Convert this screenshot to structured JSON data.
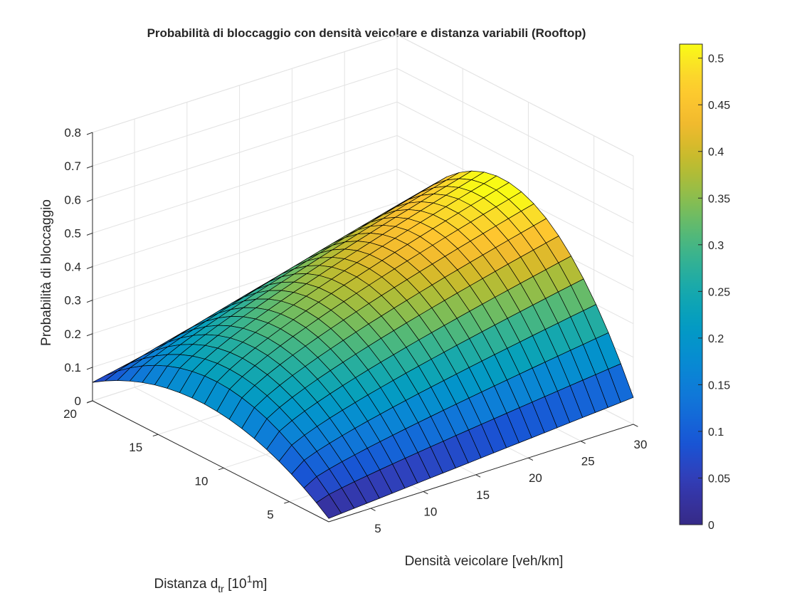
{
  "chart_data": {
    "type": "surface",
    "title": "Probabilità di bloccaggio con densità veicolare e distanza variabili (Rooftop)",
    "xlabel": "Densità veicolare [veh/km]",
    "ylabel": {
      "main": "Distanza d",
      "sub": "tr",
      "mid": " [10",
      "sup": "1",
      "end": "m]"
    },
    "zlabel": "Probabilità di bloccaggio",
    "xlim": [
      1,
      30
    ],
    "ylim": [
      2,
      20
    ],
    "zlim": [
      0,
      0.8
    ],
    "x_ticks": [
      "5",
      "10",
      "15",
      "20",
      "25",
      "30"
    ],
    "y_ticks": [
      "5",
      "10",
      "15",
      "20"
    ],
    "z_ticks": [
      "0",
      "0.1",
      "0.2",
      "0.3",
      "0.4",
      "0.5",
      "0.6",
      "0.7",
      "0.8"
    ],
    "x_values": [
      1,
      30
    ],
    "x_steps": 24,
    "y_values": [
      2,
      20
    ],
    "y_steps": 19,
    "corner_values": {
      "x1_y2": 0.01,
      "x1_y20": 0.055,
      "x30_y2": 0.08,
      "x30_y20": 0.245,
      "peak": 0.515
    },
    "colorbar": {
      "ticks": [
        "0",
        "0.05",
        "0.1",
        "0.15",
        "0.2",
        "0.25",
        "0.3",
        "0.35",
        "0.4",
        "0.45",
        "0.5"
      ],
      "range": [
        0,
        0.515
      ],
      "colormap": "parula"
    },
    "grid": true
  }
}
